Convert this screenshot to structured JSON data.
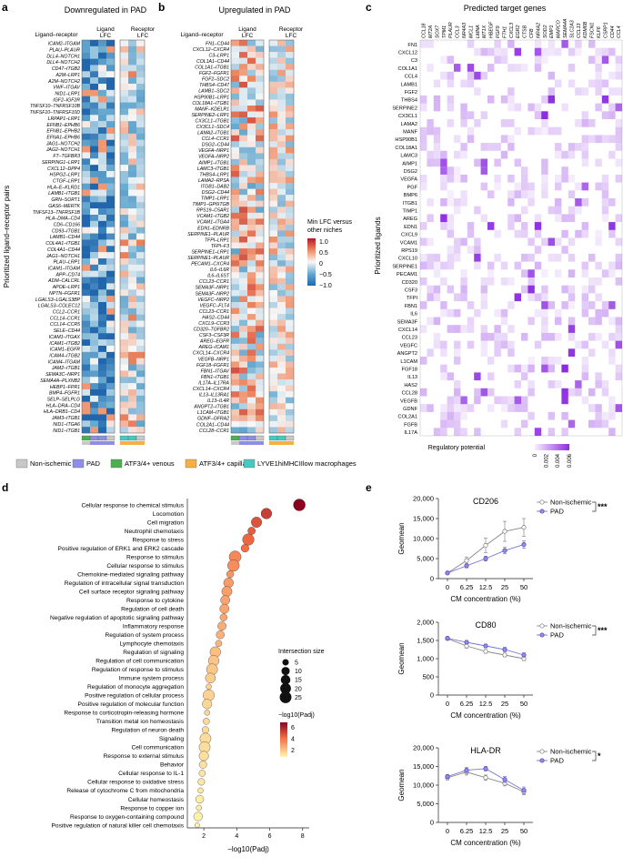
{
  "panels": {
    "a": {
      "letter": "a",
      "title": "Downregulated in PAD",
      "col_header_pair": "Ligand–receptor",
      "col_header_ligand": "Ligand LFC",
      "col_header_receptor": "Receptor LFC",
      "ylabel": "Prioritized ligand–receptor pairs",
      "pairs": [
        "ICAM2–ITGAM",
        "PLAU–PLAUR",
        "DLL4–NOTCH1",
        "DLL4–NOTCH2",
        "CD47–ITGB2",
        "A2M–LRP1",
        "A2M–NOTCH2",
        "VWF–ITGAV",
        "NID1–LRP1",
        "IGF2–IGF2R",
        "TNFSF10–TNFRSF10B",
        "TNFSF10–TNFRSF10D",
        "LRPAP1–LRP1",
        "EFNB1–EPHB6",
        "EFNB1–EPHB2",
        "EFNA1–EPHB6",
        "JAG1–NOTCH2",
        "JAG2–NOTCH1",
        "FT–TGFBR3",
        "SERPING1–LRP1",
        "CXCL12–DPP4",
        "HSPG2–LRP1",
        "CTGF–LRP1",
        "HLA–E–KLRD1",
        "LAMB1–ITGB1",
        "GRN–SORT1",
        "GAS6–MERTK",
        "TNFSF13–TNFRSF1B",
        "HLA–DMA–CD4",
        "CD6–CD166",
        "CD93–ITGB1",
        "LAMB1–CD44",
        "COL4A1–ITGB1",
        "COL4A1–CD44",
        "JAG1–NOTCH1",
        "PLAU–LRP1",
        "ICAM1–ITGAM",
        "APP–CD74",
        "ADM–CALCRL",
        "APOE–LRP1",
        "NPTN–FGFR1",
        "LGALS3–LGALS3BP",
        "LGALS3–COLEC12",
        "CCL2–CCR1",
        "CCL14–CCR1",
        "CCL14–CCR5",
        "SELE–CD44",
        "ICAM1–ITGAX",
        "ICAM1–ITGB2",
        "ICAM1–EGFR",
        "ICAM4–ITGB2",
        "ICAM4–ITGAM",
        "JAM2–ITGB1",
        "SEMA3C–NRP1",
        "SEMA4A–PLXNB2",
        "HEBP1–FPR1",
        "BMP4–FGFR1",
        "SELP–SELPLG",
        "HLA–DRA–CD4",
        "HLA–DRB1–CD4",
        "JAM3–ITGB1",
        "NID1–ITGA6",
        "NID1–ITGB1"
      ],
      "legend": {
        "title_line1": "Min LFC versus",
        "title_line2": "other niches",
        "ticks": [
          "1.0",
          "0.5",
          "0",
          "−0.5",
          "−1.0"
        ],
        "colors": [
          "#b2182b",
          "#ef8a62",
          "#f7f7f7",
          "#67a9cf",
          "#2166ac"
        ]
      }
    },
    "b": {
      "letter": "b",
      "title": "Upregulated in PAD",
      "col_header_pair": "Ligand–receptor",
      "col_header_ligand": "Ligand LFC",
      "col_header_receptor": "Receptor LFC",
      "pairs": [
        "FN1–CD44",
        "CXCL12–CXCR4",
        "C3–LRP1",
        "COL1A1–CD44",
        "COL1A1–ITGB1",
        "FGF2–FGFR1",
        "FGF2–SDC2",
        "THBS4–CD47",
        "LAMB1–SDC2",
        "HSP90B1–LRP1",
        "COL18A1–ITGB1",
        "MANF–KDELR1",
        "SERPINE2–LRP1",
        "CX3CL1–ITGB1",
        "CX3CL1–SDC4",
        "LAMA2–ITGB1",
        "CCL4–CCR1",
        "DSG2–CD44",
        "VEGFA–NRP1",
        "VEGFA–NRP2",
        "AIMP1–ITGB1",
        "LAMC3–ITGB1",
        "THBS4–LRP1",
        "LAMA2–RPSA",
        "ITGB1–DAB2",
        "DSG2–CD44",
        "TIMP1–LRP1",
        "TIMP1–GP6ITGB",
        "RPS19–C5AR1",
        "VCAM1–ITGB2",
        "VCAM1–ITGA4",
        "EDN1–EDNRB",
        "SERPINE1–PLAUR",
        "TFPI–LRP1",
        "TFPI–F3",
        "SERPINE1–LRP1",
        "SERPINE1–PLAUR",
        "PECAM1–CXCR4",
        "IL6–IL6R",
        "IL6–IL6ST",
        "CCL23–CCR1",
        "SEMA3F–NRP1",
        "SEMA3F–NRP2",
        "VEGFC–NRP2",
        "VEGFC–FLT4",
        "CCL23–CCR1",
        "HAS2–CD44",
        "CXCL9–CCR3",
        "CD320–TGFBR2",
        "CSF3–CSF3R",
        "AREG–EGFR",
        "AREG–ICAM1",
        "CXCL14–CXCR4",
        "VEGFB–NRP1",
        "FGF18–FGFR1",
        "FBN1–ITGAV",
        "FBN1–ITGB1",
        "IL17A–IL17RA",
        "CXCL14–CXCR4",
        "IL13–IL13RA1",
        "IL13–IL4R",
        "ANGPT2–ITGB1",
        "L1CAM–ITGB1",
        "GDNF–GFRA2",
        "COL2A1–CD44",
        "CCL28–CCR1"
      ]
    },
    "c": {
      "letter": "c",
      "title": "Predicted target genes",
      "ylabel": "Prioritized ligands",
      "targets": [
        "CCL18",
        "MT2A",
        "SOX7",
        "TPM1",
        "PLAUR",
        "CCL3",
        "NR4A3",
        "MCL1",
        "LMNA",
        "MT1X",
        "HBEGF",
        "FGF9",
        "FTH1",
        "CXCL3",
        "EGR2",
        "CTSB",
        "CFB",
        "NR4A2",
        "SOD2",
        "EMP1",
        "MARCO",
        "SEMA4A",
        "SLC2A3",
        "CCL13",
        "KDM6B",
        "FSCN1",
        "KLF6",
        "CSRP1",
        "CD44",
        "CCL4"
      ],
      "ligands": [
        "FN1",
        "CXCL12",
        "C3",
        "COL1A1",
        "CCL4",
        "LAMB1",
        "FGF2",
        "THBS4",
        "SERPINE2",
        "CX3CL1",
        "LAMA2",
        "MANF",
        "HSP90B1",
        "COL18A1",
        "LAMC3",
        "AIMP1",
        "DSG2",
        "VEGFA",
        "PGF",
        "BMP6",
        "ITGB1",
        "TIMP1",
        "AREG",
        "EDN1",
        "CXCL9",
        "VCAM1",
        "RPS19",
        "CXCL10",
        "SERPINE1",
        "PECAM1",
        "CD320",
        "CSF3",
        "TFPI",
        "FBN1",
        "IL6",
        "SEMA3F",
        "CXCL14",
        "CCL23",
        "VEGFC",
        "ANGPT2",
        "L1CAM",
        "FGF18",
        "IL13",
        "HAS2",
        "CCL28",
        "VEGFB",
        "GDNF",
        "COL2A1",
        "FGFB",
        "IL17A"
      ],
      "legend_title": "Regulatory potential",
      "legend_ticks": [
        "0",
        "0.002",
        "0.004",
        "0.006"
      ]
    },
    "d": {
      "letter": "d",
      "xlabel": "−log10(Padj)",
      "xticks": [
        2,
        4,
        6,
        8
      ],
      "size_legend_title": "Intersection size",
      "size_legend": [
        5,
        10,
        15,
        20,
        25
      ],
      "color_legend_title": "−log10(Padj)",
      "color_legend_ticks": [
        "6",
        "4",
        "2"
      ]
    },
    "e": {
      "letter": "e",
      "xlabel": "CM concentration (%)",
      "ylabel": "Geomean",
      "xticks": [
        "0",
        "6.25",
        "12.5",
        "25",
        "50"
      ],
      "series_names": [
        "Non-ischemic",
        "PAD"
      ]
    }
  },
  "niche_legend": [
    {
      "label": "Non-ischemic",
      "color": "#c8c8c8"
    },
    {
      "label": "PAD",
      "color": "#8e8ee6"
    },
    {
      "label": "ATF3/4+ venous",
      "color": "#4caf50"
    },
    {
      "label": "ATF3/4+ capillary",
      "color": "#f5b041"
    },
    {
      "label": "LYVE1hiMHCIIlow macrophages",
      "color": "#48c9c0"
    }
  ],
  "chart_data": [
    {
      "type": "bubble",
      "panel": "d",
      "xlabel": "−log10(Padj)",
      "xlim": [
        1,
        8.4
      ],
      "size_title": "Intersection size",
      "terms": [
        {
          "term": "Cellular response to chemical stimulus",
          "x": 7.8,
          "size": 26
        },
        {
          "term": "Locomotion",
          "x": 5.8,
          "size": 20
        },
        {
          "term": "Cell migration",
          "x": 5.2,
          "size": 19
        },
        {
          "term": "Neutrophil chemotaxis",
          "x": 4.9,
          "size": 8
        },
        {
          "term": "Response to stress",
          "x": 4.7,
          "size": 24
        },
        {
          "term": "Positive regulation of ERK1 and ERK2 cascade",
          "x": 4.5,
          "size": 9
        },
        {
          "term": "Response to stimulus",
          "x": 3.9,
          "size": 26
        },
        {
          "term": "Cellular response to stimulus",
          "x": 3.8,
          "size": 25
        },
        {
          "term": "Chemokine-mediated signaling pathway",
          "x": 3.6,
          "size": 7
        },
        {
          "term": "Regulation of intracellular signal transduction",
          "x": 3.5,
          "size": 16
        },
        {
          "term": "Cell surface receptor signaling pathway",
          "x": 3.4,
          "size": 18
        },
        {
          "term": "Response to cytokine",
          "x": 3.3,
          "size": 14
        },
        {
          "term": "Regulation of cell death",
          "x": 3.25,
          "size": 14
        },
        {
          "term": "Negative regulation of apoptotic signaling pathway",
          "x": 3.2,
          "size": 7
        },
        {
          "term": "Inflammatory response",
          "x": 3.1,
          "size": 11
        },
        {
          "term": "Regulation of system process",
          "x": 3.0,
          "size": 10
        },
        {
          "term": "Lymphocyte chemotaxis",
          "x": 2.9,
          "size": 5
        },
        {
          "term": "Regulation of signaling",
          "x": 2.7,
          "size": 20
        },
        {
          "term": "Regulation of cell communication",
          "x": 2.6,
          "size": 20
        },
        {
          "term": "Regulation of response to stimulus",
          "x": 2.5,
          "size": 22
        },
        {
          "term": "Immune system process",
          "x": 2.4,
          "size": 17
        },
        {
          "term": "Regulation of monocyte aggregation",
          "x": 2.3,
          "size": 3
        },
        {
          "term": "Positive regulation of cellular process",
          "x": 2.3,
          "size": 23
        },
        {
          "term": "Positive regulation of molecular function",
          "x": 2.2,
          "size": 15
        },
        {
          "term": "Response to corticotropin-releasing hormone",
          "x": 2.2,
          "size": 3
        },
        {
          "term": "Transition metal ion homeostasis",
          "x": 2.15,
          "size": 5
        },
        {
          "term": "Regulation of neuron death",
          "x": 2.1,
          "size": 6
        },
        {
          "term": "Signaling",
          "x": 2.1,
          "size": 22
        },
        {
          "term": "Cell communication",
          "x": 2.05,
          "size": 22
        },
        {
          "term": "Response to external stimulus",
          "x": 2.0,
          "size": 15
        },
        {
          "term": "Behavior",
          "x": 1.95,
          "size": 8
        },
        {
          "term": "Cellular response to IL-1",
          "x": 1.9,
          "size": 5
        },
        {
          "term": "Cellular response to oxidative stress",
          "x": 1.85,
          "size": 6
        },
        {
          "term": "Release of cytochrome C from mitochondria",
          "x": 1.8,
          "size": 3
        },
        {
          "term": "Cellular homeostasis",
          "x": 1.75,
          "size": 10
        },
        {
          "term": "Response to copper ion",
          "x": 1.7,
          "size": 3
        },
        {
          "term": "Response to oxygen-containing compound",
          "x": 1.65,
          "size": 12
        },
        {
          "term": "Positive regulation of natural killer cell chemotaxis",
          "x": 1.6,
          "size": 2
        }
      ]
    },
    {
      "type": "line",
      "panel": "e",
      "title": "CD206",
      "x": [
        "0",
        "6.25",
        "12.5",
        "25",
        "50"
      ],
      "ylim": [
        0,
        20000
      ],
      "yticks": [
        "0",
        "5,000",
        "10,000",
        "15,000",
        "20,000"
      ],
      "significance": "***",
      "series": [
        {
          "name": "Non-ischemic",
          "values": [
            1400,
            4500,
            8300,
            11800,
            12800
          ],
          "err": [
            200,
            900,
            1800,
            2500,
            2200
          ]
        },
        {
          "name": "PAD",
          "values": [
            1400,
            3200,
            5000,
            7000,
            8500
          ],
          "err": [
            150,
            500,
            600,
            800,
            900
          ]
        }
      ]
    },
    {
      "type": "line",
      "panel": "e",
      "title": "CD80",
      "x": [
        "0",
        "6.25",
        "12.5",
        "25",
        "50"
      ],
      "ylim": [
        0,
        2000
      ],
      "yticks": [
        "0",
        "500",
        "1,000",
        "1,500",
        "2,000"
      ],
      "significance": "***",
      "series": [
        {
          "name": "Non-ischemic",
          "values": [
            1550,
            1350,
            1200,
            1100,
            1000
          ],
          "err": [
            40,
            60,
            50,
            50,
            50
          ]
        },
        {
          "name": "PAD",
          "values": [
            1560,
            1450,
            1350,
            1250,
            1100
          ],
          "err": [
            40,
            50,
            50,
            60,
            60
          ]
        }
      ]
    },
    {
      "type": "line",
      "panel": "e",
      "title": "HLA-DR",
      "x": [
        "0",
        "6.25",
        "12.5",
        "25",
        "50"
      ],
      "ylim": [
        0,
        20000
      ],
      "yticks": [
        "0",
        "5,000",
        "10,000",
        "15,000",
        "20,000"
      ],
      "significance": "*",
      "series": [
        {
          "name": "Non-ischemic",
          "values": [
            12000,
            13500,
            12000,
            10500,
            8200
          ],
          "err": [
            600,
            800,
            700,
            700,
            800
          ]
        },
        {
          "name": "PAD",
          "values": [
            12300,
            14000,
            14400,
            11500,
            8600
          ],
          "err": [
            500,
            700,
            600,
            800,
            900
          ]
        }
      ]
    }
  ]
}
